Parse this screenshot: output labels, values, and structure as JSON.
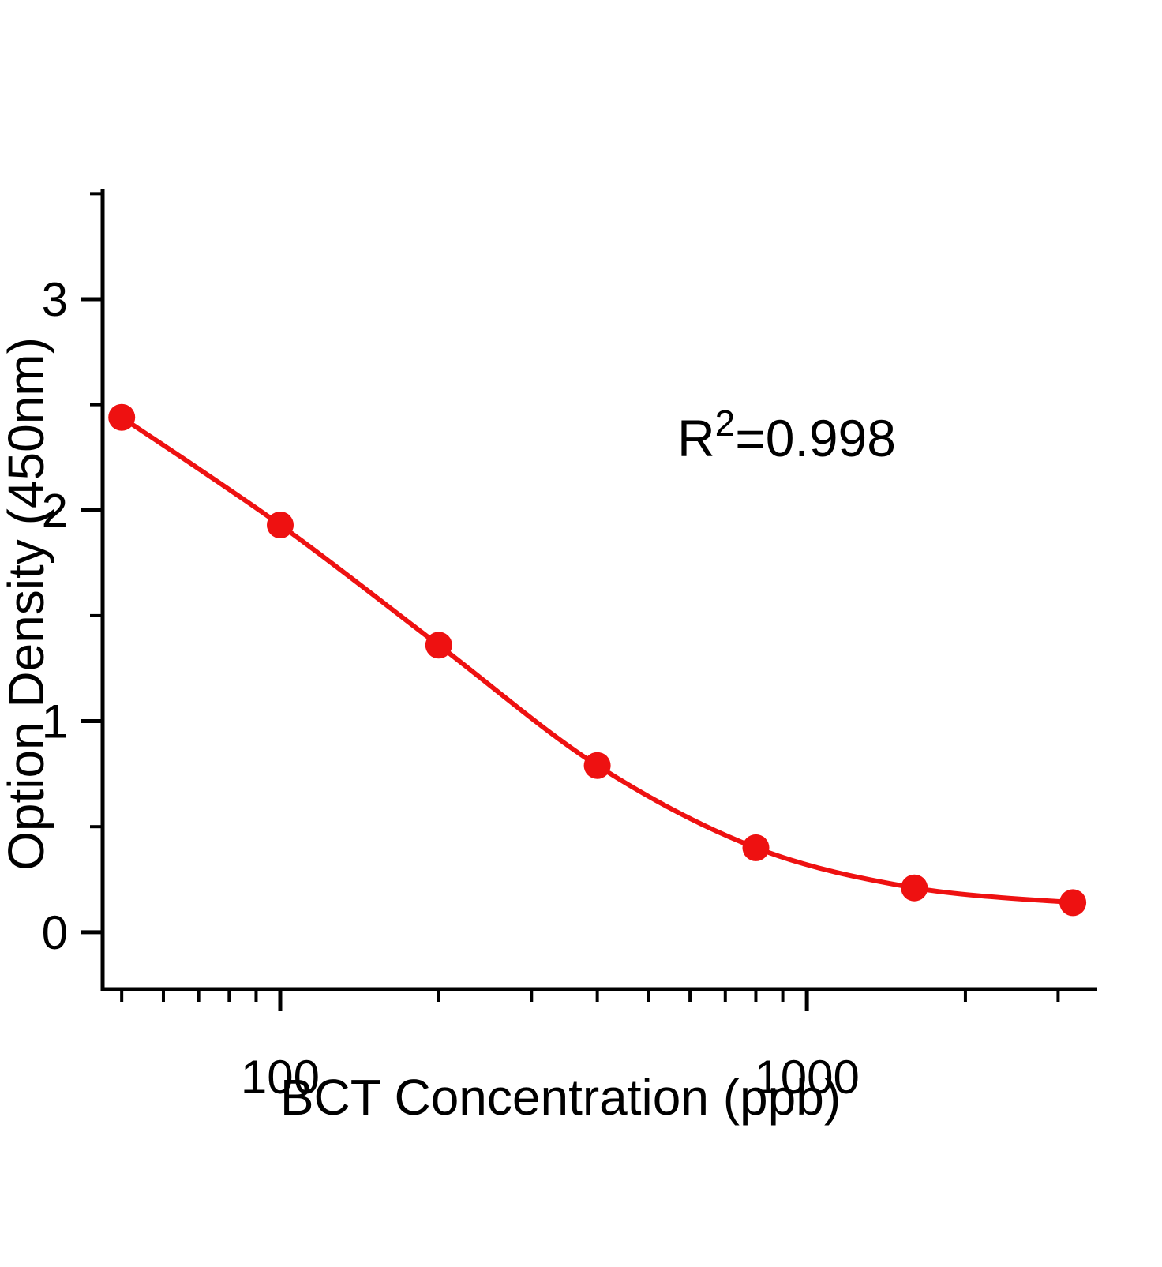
{
  "chart_data": {
    "type": "scatter",
    "title": "",
    "xlabel": "BCT Concentration (ppb)",
    "ylabel": "Option Density (450nm)",
    "x_scale": "log",
    "xlim": [
      46,
      3560
    ],
    "ylim": [
      -0.27,
      3.52
    ],
    "grid": false,
    "legend": "none",
    "series": [
      {
        "name": "standard-curve-points",
        "x": [
          50,
          100,
          200,
          400,
          800,
          1600,
          3200
        ],
        "y": [
          2.44,
          1.93,
          1.36,
          0.79,
          0.4,
          0.21,
          0.14
        ],
        "fit": "smooth-spline-through-points"
      }
    ],
    "annotation": {
      "base": "R",
      "superscript": "2",
      "rest": "=0.998"
    },
    "x_major_ticks": [
      100,
      1000
    ],
    "x_major_tick_labels": [
      "100",
      "1000"
    ],
    "x_minor_ticks": [
      50,
      60,
      70,
      80,
      90,
      200,
      300,
      400,
      500,
      600,
      700,
      800,
      900,
      2000,
      3000
    ],
    "y_major_ticks": [
      0,
      1,
      2,
      3
    ],
    "y_major_tick_labels": [
      "0",
      "1",
      "2",
      "3"
    ],
    "y_minor_ticks": [
      0.5,
      1.5,
      2.5,
      3.5
    ],
    "colors": {
      "point_color": "#ee1111",
      "curve_color": "#ee1111",
      "axis_color": "#000000",
      "text_color": "#000000",
      "background": "#ffffff"
    }
  }
}
